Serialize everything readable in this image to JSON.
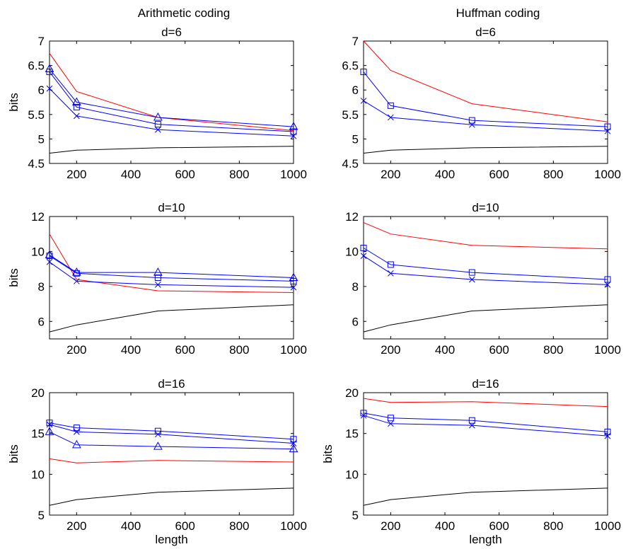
{
  "colors": {
    "red": "#ff0000",
    "blue": "#0000ff",
    "black": "#000000"
  },
  "column_titles": [
    "Arithmetic coding",
    "Huffman coding"
  ],
  "chart_data": [
    {
      "type": "line",
      "title": "d=6",
      "xlabel": "",
      "ylabel": "bits",
      "xlim": [
        100,
        1000
      ],
      "ylim": [
        4.5,
        7
      ],
      "xticks": [
        200,
        400,
        600,
        800,
        1000
      ],
      "yticks": [
        4.5,
        5,
        5.5,
        6,
        6.5,
        7
      ],
      "x": [
        100,
        200,
        500,
        1000
      ],
      "series": [
        {
          "color": "#ff0000",
          "marker": "none",
          "values": [
            6.75,
            5.97,
            5.44,
            5.17
          ]
        },
        {
          "color": "#0000ff",
          "marker": "triangle",
          "values": [
            6.43,
            5.75,
            5.44,
            5.25
          ]
        },
        {
          "color": "#0000ff",
          "marker": "square",
          "values": [
            6.37,
            5.65,
            5.3,
            5.15
          ]
        },
        {
          "color": "#0000ff",
          "marker": "x",
          "values": [
            6.03,
            5.47,
            5.19,
            5.06
          ]
        },
        {
          "color": "#000000",
          "marker": "none",
          "values": [
            4.71,
            4.77,
            4.82,
            4.85
          ]
        }
      ]
    },
    {
      "type": "line",
      "title": "d=6",
      "xlabel": "",
      "ylabel": "",
      "xlim": [
        100,
        1000
      ],
      "ylim": [
        4.5,
        7
      ],
      "xticks": [
        200,
        400,
        600,
        800,
        1000
      ],
      "yticks": [
        4.5,
        5,
        5.5,
        6,
        6.5,
        7
      ],
      "x": [
        100,
        200,
        500,
        1000
      ],
      "series": [
        {
          "color": "#ff0000",
          "marker": "none",
          "values": [
            7.0,
            6.4,
            5.72,
            5.35
          ]
        },
        {
          "color": "#0000ff",
          "marker": "square",
          "values": [
            6.37,
            5.68,
            5.38,
            5.25
          ]
        },
        {
          "color": "#0000ff",
          "marker": "x",
          "values": [
            5.78,
            5.44,
            5.29,
            5.16
          ]
        },
        {
          "color": "#000000",
          "marker": "none",
          "values": [
            4.71,
            4.77,
            4.82,
            4.85
          ]
        }
      ]
    },
    {
      "type": "line",
      "title": "d=10",
      "xlabel": "",
      "ylabel": "bits",
      "xlim": [
        100,
        1000
      ],
      "ylim": [
        5,
        12
      ],
      "xticks": [
        200,
        400,
        600,
        800,
        1000
      ],
      "yticks": [
        6,
        8,
        10,
        12
      ],
      "x": [
        100,
        200,
        500,
        1000
      ],
      "series": [
        {
          "color": "#ff0000",
          "marker": "none",
          "values": [
            11.0,
            8.4,
            7.75,
            7.65
          ]
        },
        {
          "color": "#0000ff",
          "marker": "triangle",
          "values": [
            9.8,
            8.8,
            8.8,
            8.5
          ]
        },
        {
          "color": "#0000ff",
          "marker": "square",
          "values": [
            9.75,
            8.75,
            8.5,
            8.3
          ]
        },
        {
          "color": "#0000ff",
          "marker": "x",
          "values": [
            9.4,
            8.3,
            8.1,
            7.95
          ]
        },
        {
          "color": "#000000",
          "marker": "none",
          "values": [
            5.4,
            5.8,
            6.6,
            6.95
          ]
        }
      ]
    },
    {
      "type": "line",
      "title": "d=10",
      "xlabel": "",
      "ylabel": "",
      "xlim": [
        100,
        1000
      ],
      "ylim": [
        5,
        12
      ],
      "xticks": [
        200,
        400,
        600,
        800,
        1000
      ],
      "yticks": [
        6,
        8,
        10,
        12
      ],
      "x": [
        100,
        200,
        500,
        1000
      ],
      "series": [
        {
          "color": "#ff0000",
          "marker": "none",
          "values": [
            11.65,
            11.0,
            10.35,
            10.15
          ]
        },
        {
          "color": "#0000ff",
          "marker": "square",
          "values": [
            10.2,
            9.25,
            8.8,
            8.4
          ]
        },
        {
          "color": "#0000ff",
          "marker": "x",
          "values": [
            9.75,
            8.75,
            8.4,
            8.1
          ]
        },
        {
          "color": "#000000",
          "marker": "none",
          "values": [
            5.4,
            5.8,
            6.6,
            6.95
          ]
        }
      ]
    },
    {
      "type": "line",
      "title": "d=16",
      "xlabel": "length",
      "ylabel": "bits",
      "xlim": [
        100,
        1000
      ],
      "ylim": [
        5,
        20
      ],
      "xticks": [
        200,
        400,
        600,
        800,
        1000
      ],
      "yticks": [
        5,
        10,
        15,
        20
      ],
      "x": [
        100,
        200,
        500,
        1000
      ],
      "series": [
        {
          "color": "#ff0000",
          "marker": "none",
          "values": [
            11.9,
            11.4,
            11.7,
            11.5
          ]
        },
        {
          "color": "#0000ff",
          "marker": "square",
          "values": [
            16.3,
            15.7,
            15.3,
            14.3
          ]
        },
        {
          "color": "#0000ff",
          "marker": "x",
          "values": [
            16.1,
            15.2,
            14.9,
            13.8
          ]
        },
        {
          "color": "#0000ff",
          "marker": "triangle",
          "values": [
            15.2,
            13.6,
            13.4,
            13.1
          ]
        },
        {
          "color": "#000000",
          "marker": "none",
          "values": [
            6.2,
            6.9,
            7.8,
            8.3
          ]
        }
      ]
    },
    {
      "type": "line",
      "title": "d=16",
      "xlabel": "length",
      "ylabel": "bits",
      "xlim": [
        100,
        1000
      ],
      "ylim": [
        5,
        20
      ],
      "xticks": [
        200,
        400,
        600,
        800,
        1000
      ],
      "yticks": [
        5,
        10,
        15,
        20
      ],
      "x": [
        100,
        200,
        500,
        1000
      ],
      "series": [
        {
          "color": "#ff0000",
          "marker": "none",
          "values": [
            19.3,
            18.8,
            18.9,
            18.3
          ]
        },
        {
          "color": "#0000ff",
          "marker": "square",
          "values": [
            17.5,
            16.9,
            16.6,
            15.2
          ]
        },
        {
          "color": "#0000ff",
          "marker": "x",
          "values": [
            17.2,
            16.2,
            16.0,
            14.7
          ]
        },
        {
          "color": "#000000",
          "marker": "none",
          "values": [
            6.2,
            6.9,
            7.8,
            8.3
          ]
        }
      ]
    }
  ]
}
